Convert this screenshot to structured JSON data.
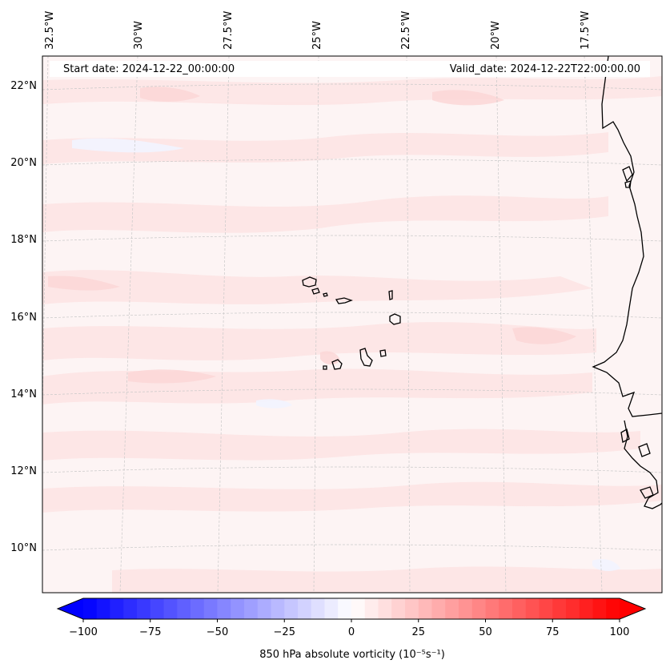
{
  "map": {
    "start_date": "Start date: 2024-12-22_00:00:00",
    "valid_date": "Valid_date: 2024-12-22T22:00:00.00",
    "lon_labels": [
      "32.5°W",
      "30°W",
      "27.5°W",
      "25°W",
      "22.5°W",
      "20°W",
      "17.5°W"
    ],
    "lat_labels": [
      "22°N",
      "20°N",
      "18°N",
      "16°N",
      "14°N",
      "12°N",
      "10°N"
    ],
    "variable": "850 hPa absolute vorticity",
    "units": "(10⁻⁵s⁻¹)"
  },
  "colorbar": {
    "min": -100,
    "max": 100,
    "ticks": [
      "−100",
      "−75",
      "−50",
      "−25",
      "0",
      "25",
      "50",
      "75",
      "100"
    ],
    "label": "850 hPa absolute vorticity (10⁻⁵s⁻¹)",
    "colors": {
      "negative": "#0000ff",
      "zero": "#ffffff",
      "positive": "#ff0000"
    }
  },
  "colors": {
    "background_field": "#fdf3f3",
    "weak_positive": "#fde6e6",
    "coastline": "#000000",
    "grid": "#bbbbbb"
  }
}
